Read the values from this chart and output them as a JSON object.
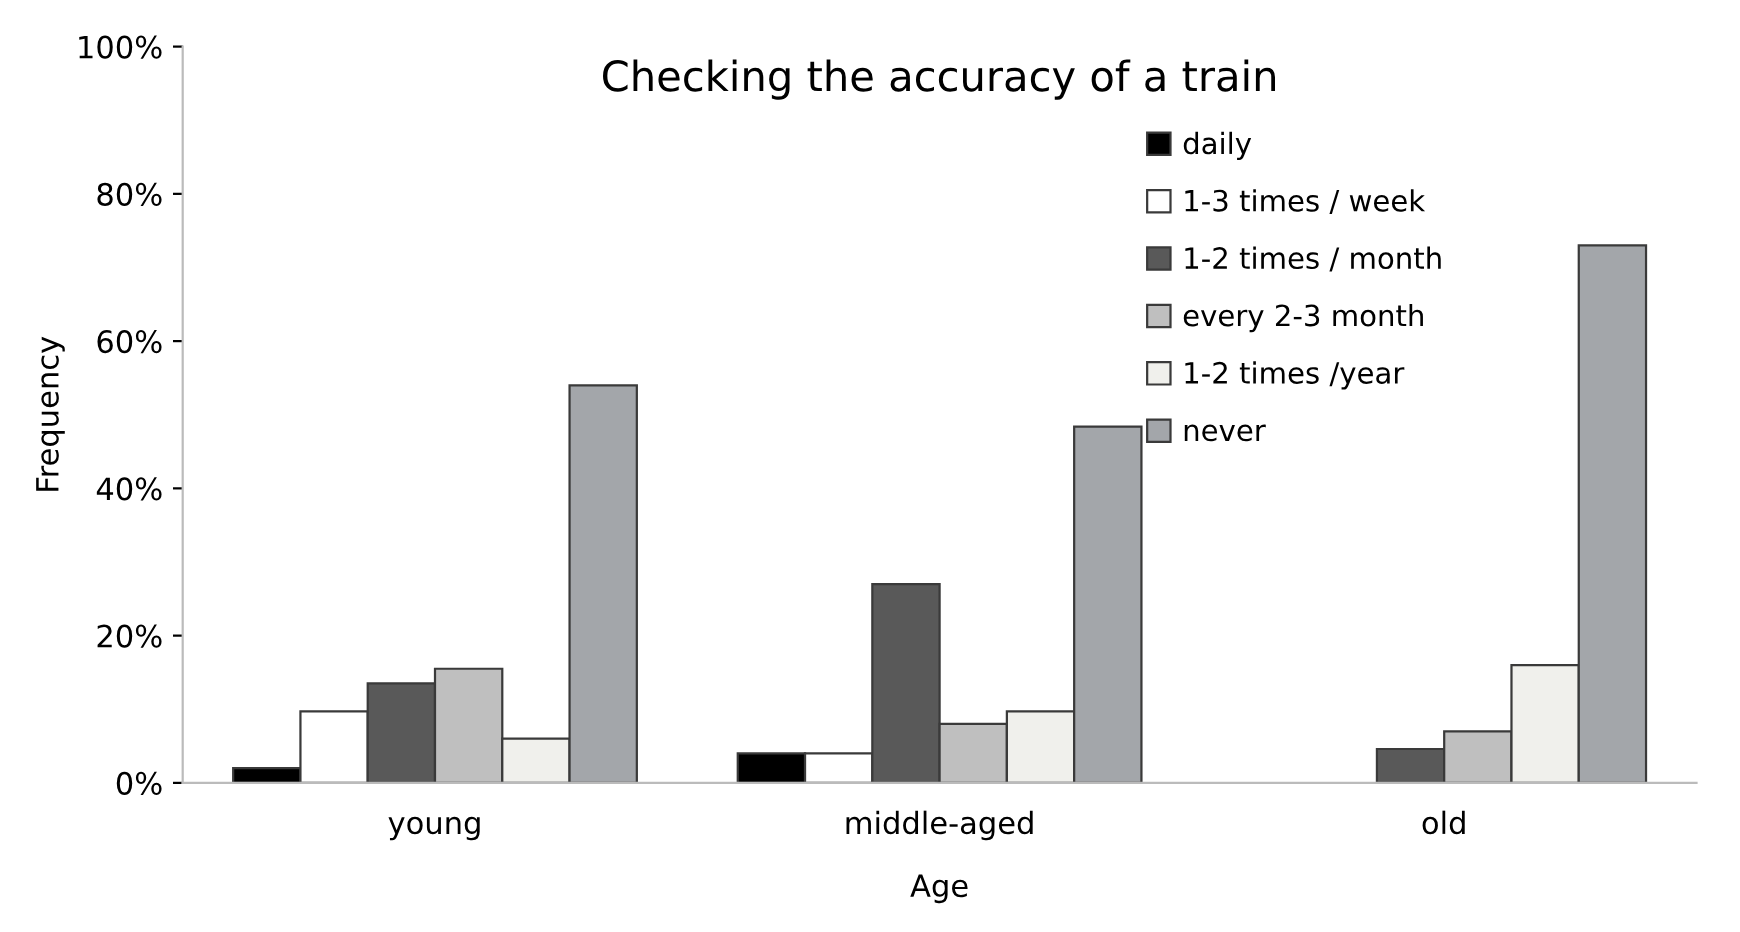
{
  "chart_data": {
    "type": "bar",
    "title": "Checking the accuracy of a train",
    "xlabel": "Age",
    "ylabel": "Frequency",
    "categories": [
      "young",
      "middle-aged",
      "old"
    ],
    "series": [
      {
        "name": "daily",
        "color": "#000000",
        "values": [
          2,
          4,
          null
        ]
      },
      {
        "name": "1-3 times / week",
        "color": "#ffffff",
        "values": [
          9.7,
          4,
          null
        ]
      },
      {
        "name": "1-2 times / month",
        "color": "#595959",
        "values": [
          13.5,
          27,
          4.6
        ]
      },
      {
        "name": "every 2-3 month",
        "color": "#bfbfbf",
        "values": [
          15.5,
          8,
          7
        ]
      },
      {
        "name": "1-2 times /year",
        "color": "#f0f0ec",
        "values": [
          6,
          9.7,
          16
        ]
      },
      {
        "name": "never",
        "color": "#a3a6aa",
        "values": [
          54,
          48.4,
          73
        ]
      }
    ],
    "ylim": [
      0,
      100
    ],
    "yticks": [
      {
        "value": 0,
        "label": "0%"
      },
      {
        "value": 20,
        "label": "20%"
      },
      {
        "value": 40,
        "label": "40%"
      },
      {
        "value": 60,
        "label": "60%"
      },
      {
        "value": 80,
        "label": "80%"
      },
      {
        "value": 100,
        "label": "100%"
      }
    ],
    "grid": false,
    "legend": "top right"
  }
}
